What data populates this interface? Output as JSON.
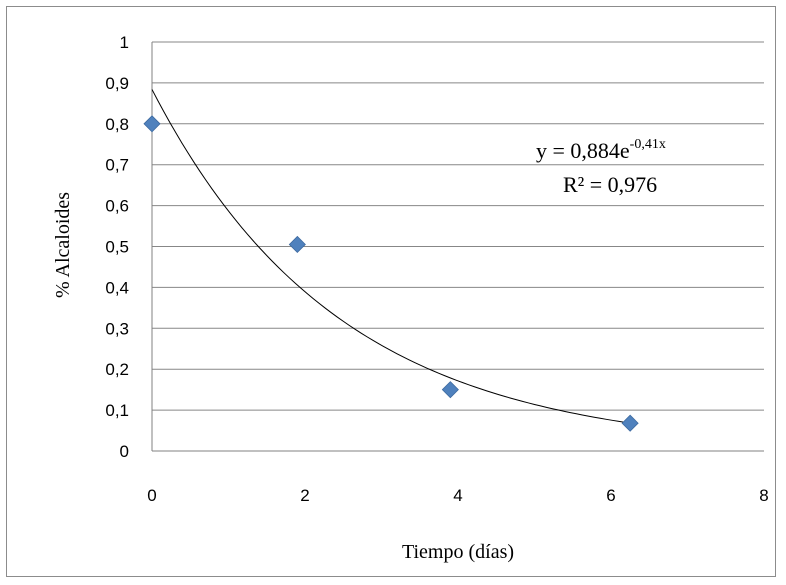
{
  "chart_data": {
    "type": "scatter",
    "xlabel": "Tiempo (días)",
    "ylabel": "% Alcaloides",
    "xlim": [
      0,
      8
    ],
    "ylim": [
      0,
      1
    ],
    "x_ticks": [
      "0",
      "2",
      "4",
      "6",
      "8"
    ],
    "y_ticks": [
      "0",
      "0,1",
      "0,2",
      "0,3",
      "0,4",
      "0,5",
      "0,6",
      "0,7",
      "0,8",
      "0,9",
      "1"
    ],
    "grid": "horizontal",
    "series": [
      {
        "marker": "diamond",
        "color": "#4f81bd",
        "points": [
          {
            "x": 0,
            "y": 0.8
          },
          {
            "x": 1.9,
            "y": 0.505
          },
          {
            "x": 3.9,
            "y": 0.15
          },
          {
            "x": 6.25,
            "y": 0.068
          }
        ]
      }
    ],
    "trendline": {
      "type": "exponential",
      "a": 0.884,
      "b": -0.41,
      "x_range": [
        0,
        6.25
      ],
      "color": "#000000",
      "equation_prefix": "y = 0,884e",
      "equation_exponent": "-0,41x",
      "r2_label": "R² = 0,976"
    }
  }
}
